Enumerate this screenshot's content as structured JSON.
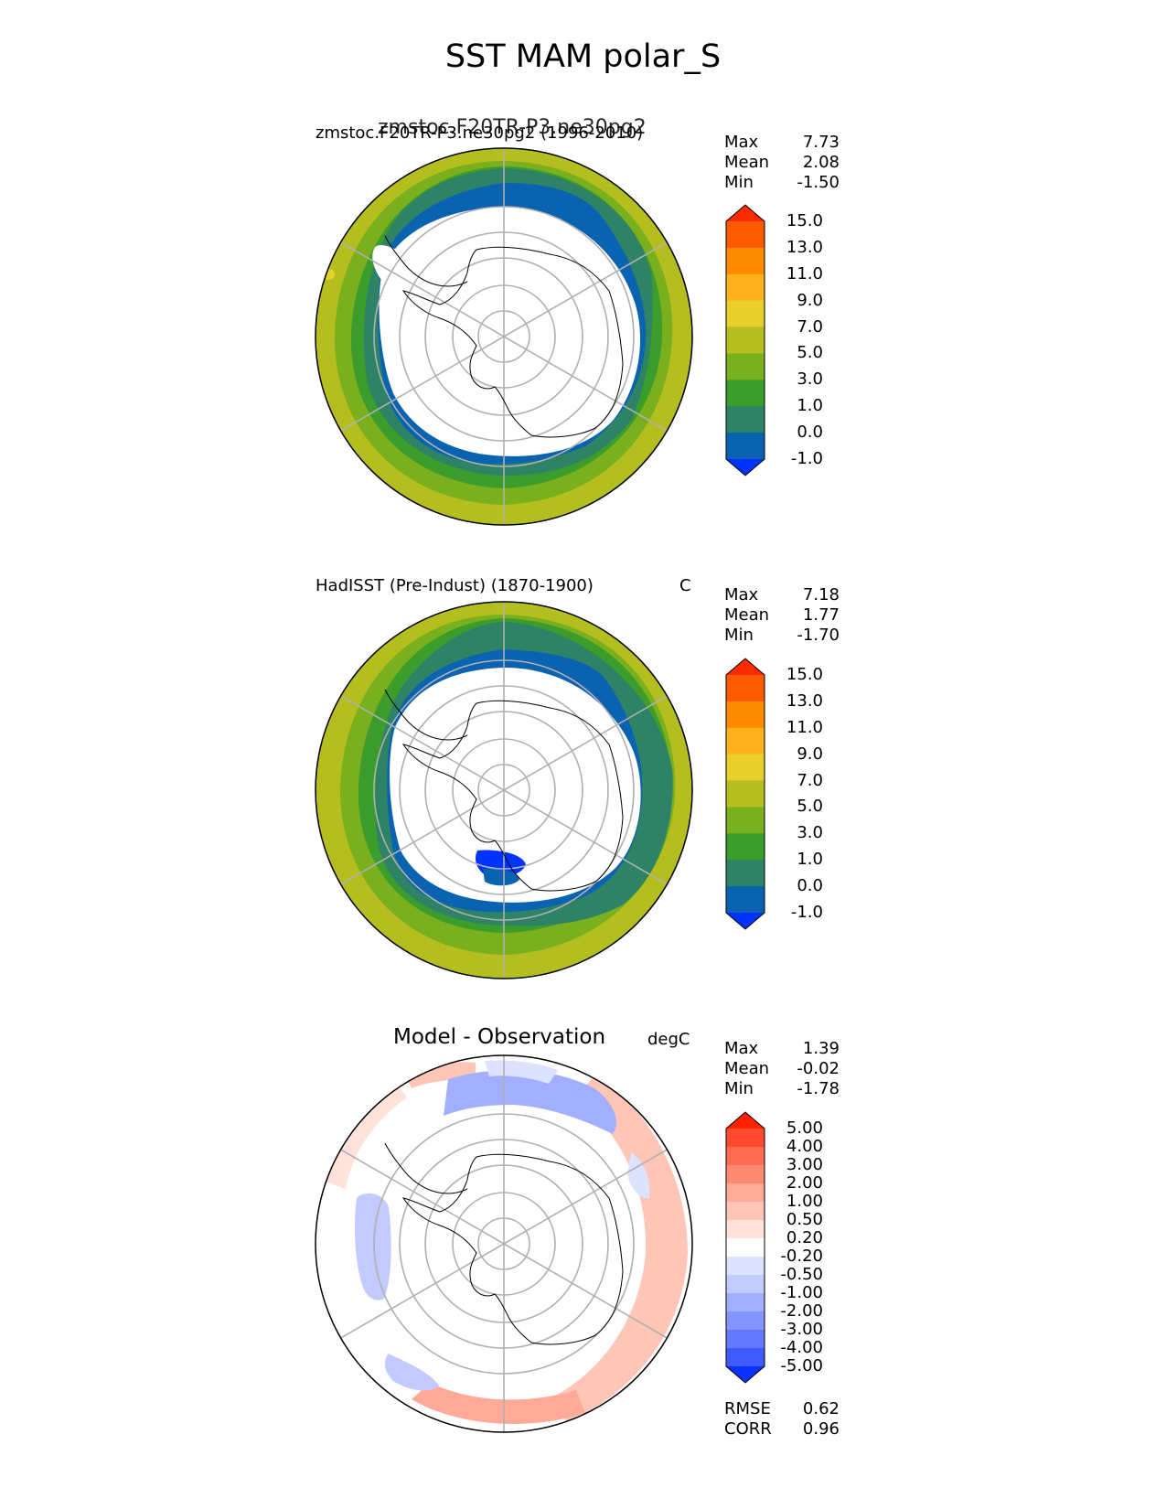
{
  "figure": {
    "title": "SST MAM polar_S"
  },
  "panels": [
    {
      "id": "model",
      "title_left": "zmstoc.F20TR-P3.ne30pg2 (1996-2010)",
      "title_overlay": "zmstoc.F20TR-P3.ne30pg2",
      "title_center": "",
      "units": "",
      "stats": {
        "max_label": "Max",
        "max": "7.73",
        "mean_label": "Mean",
        "mean": "2.08",
        "min_label": "Min",
        "min": "-1.50"
      },
      "colorbar": {
        "ticks": [
          "15.0",
          "13.0",
          "11.0",
          "9.0",
          "7.0",
          "5.0",
          "3.0",
          "1.0",
          "0.0",
          "-1.0"
        ],
        "colors": [
          "#ff2a00",
          "#ff5a00",
          "#ff8c00",
          "#ffb21e",
          "#e8cf2a",
          "#b4be1e",
          "#7ab01e",
          "#3c9c2c",
          "#2e8266",
          "#0a63b0",
          "#0033ff"
        ]
      }
    },
    {
      "id": "obs",
      "title_left": "HadISST (Pre-Indust) (1870-1900)",
      "title_center": "",
      "units": "C",
      "stats": {
        "max_label": "Max",
        "max": "7.18",
        "mean_label": "Mean",
        "mean": "1.77",
        "min_label": "Min",
        "min": "-1.70"
      },
      "colorbar": {
        "ticks": [
          "15.0",
          "13.0",
          "11.0",
          "9.0",
          "7.0",
          "5.0",
          "3.0",
          "1.0",
          "0.0",
          "-1.0"
        ],
        "colors": [
          "#ff2a00",
          "#ff5a00",
          "#ff8c00",
          "#ffb21e",
          "#e8cf2a",
          "#b4be1e",
          "#7ab01e",
          "#3c9c2c",
          "#2e8266",
          "#0a63b0",
          "#0033ff"
        ]
      }
    },
    {
      "id": "diff",
      "title_left": "",
      "title_center": "Model - Observation",
      "units": "degC",
      "stats": {
        "max_label": "Max",
        "max": "1.39",
        "mean_label": "Mean",
        "mean": "-0.02",
        "min_label": "Min",
        "min": "-1.78"
      },
      "colorbar": {
        "ticks": [
          "5.00",
          "4.00",
          "3.00",
          "2.00",
          "1.00",
          "0.50",
          "0.20",
          "-0.20",
          "-0.50",
          "-1.00",
          "-2.00",
          "-3.00",
          "-4.00",
          "-5.00"
        ],
        "colors": [
          "#ff2200",
          "#ff4a30",
          "#ff6a52",
          "#ff8a74",
          "#ffaa98",
          "#ffc6b8",
          "#ffe2da",
          "#ffffff",
          "#dde2ff",
          "#c2caff",
          "#a2afff",
          "#8595ff",
          "#6479ff",
          "#3f5bff",
          "#0a33ff"
        ]
      },
      "metrics": {
        "rmse_label": "RMSE",
        "rmse": "0.62",
        "corr_label": "CORR",
        "corr": "0.96"
      }
    }
  ]
}
